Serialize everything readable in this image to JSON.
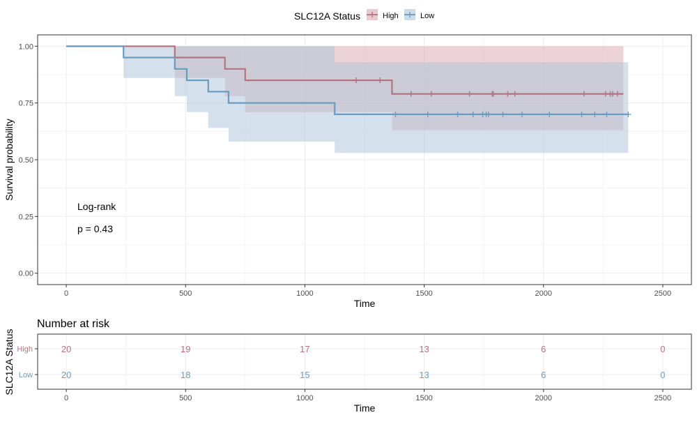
{
  "legend": {
    "title": "SLC12A Status",
    "items": [
      "High",
      "Low"
    ]
  },
  "colors": {
    "High": "#b5737c",
    "Low": "#6a9cc0",
    "High_band": "#d9a9ae",
    "Low_band": "#a9c4da",
    "grid": "#ebebeb",
    "axis_text": "#4d4d4d"
  },
  "annotation": {
    "line1": "Log-rank",
    "line2": "p = 0.43"
  },
  "chart_data": [
    {
      "type": "line",
      "subtype": "kaplan-meier step",
      "xlabel": "Time",
      "ylabel": "Survival probability",
      "xlim": [
        -120,
        2620
      ],
      "ylim": [
        -0.05,
        1.05
      ],
      "x_ticks": [
        0,
        500,
        1000,
        1500,
        2000,
        2500
      ],
      "x_tick_labels": [
        "0",
        "500",
        "1000",
        "1500",
        "2000",
        "2500"
      ],
      "y_ticks": [
        0,
        0.25,
        0.5,
        0.75,
        1
      ],
      "y_tick_labels": [
        "0.00",
        "0.25",
        "0.50",
        "0.75",
        "1.00"
      ],
      "grid": true,
      "legend_position": "top",
      "series": [
        {
          "name": "High",
          "steps": [
            [
              0,
              1.0
            ],
            [
              455,
              0.95
            ],
            [
              665,
              0.9
            ],
            [
              750,
              0.85
            ],
            [
              1365,
              0.79
            ],
            [
              2335,
              0.79
            ]
          ],
          "ci": [
            [
              0,
              1.0,
              1.0
            ],
            [
              455,
              0.86,
              1.0
            ],
            [
              665,
              0.78,
              1.0
            ],
            [
              750,
              0.71,
              1.0
            ],
            [
              1365,
              0.63,
              1.0
            ],
            [
              2335,
              0.63,
              1.0
            ]
          ],
          "censor_times": [
            1215,
            1315,
            1445,
            1530,
            1690,
            1785,
            1790,
            1850,
            1880,
            2170,
            2260,
            2280,
            2290,
            2310
          ]
        },
        {
          "name": "Low",
          "steps": [
            [
              0,
              1.0
            ],
            [
              240,
              0.95
            ],
            [
              455,
              0.9
            ],
            [
              505,
              0.85
            ],
            [
              595,
              0.8
            ],
            [
              680,
              0.75
            ],
            [
              1125,
              0.7
            ],
            [
              2355,
              0.7
            ]
          ],
          "ci": [
            [
              0,
              1.0,
              1.0
            ],
            [
              240,
              0.86,
              1.0
            ],
            [
              455,
              0.78,
              1.0
            ],
            [
              505,
              0.71,
              1.0
            ],
            [
              595,
              0.64,
              1.0
            ],
            [
              680,
              0.58,
              1.0
            ],
            [
              1125,
              0.53,
              0.93
            ],
            [
              2355,
              0.53,
              0.93
            ]
          ],
          "censor_times": [
            1380,
            1515,
            1640,
            1705,
            1745,
            1760,
            1770,
            1830,
            1910,
            2025,
            2160,
            2215,
            2265,
            2355
          ]
        }
      ]
    },
    {
      "type": "table",
      "title": "Number at risk",
      "xlabel": "Time",
      "ylabel": "SLC12A Status",
      "x_ticks": [
        0,
        500,
        1000,
        1500,
        2000,
        2500
      ],
      "x_tick_labels": [
        "0",
        "500",
        "1000",
        "1500",
        "2000",
        "2500"
      ],
      "rows": [
        {
          "name": "High",
          "values": [
            "20",
            "19",
            "17",
            "13",
            "6",
            "0"
          ]
        },
        {
          "name": "Low",
          "values": [
            "20",
            "18",
            "15",
            "13",
            "6",
            "0"
          ]
        }
      ]
    }
  ]
}
